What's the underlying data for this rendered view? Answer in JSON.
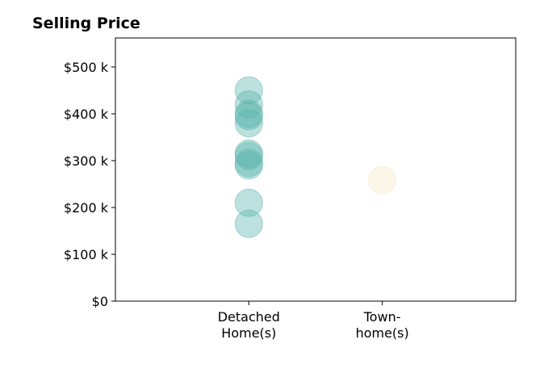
{
  "chart_data": {
    "type": "scatter",
    "title": "Selling Price",
    "xlabel": "",
    "ylabel": "",
    "categories": [
      {
        "lines": [
          "Detached",
          "Home(s)"
        ],
        "color": "#5ab4ac"
      },
      {
        "lines": [
          "Town-",
          "home(s)"
        ],
        "color": "#f6e8c3"
      }
    ],
    "series": [
      {
        "category_index": 0,
        "values": [
          450,
          420,
          400,
          395,
          380,
          315,
          310,
          295,
          290,
          210,
          165
        ]
      },
      {
        "category_index": 1,
        "values": [
          258
        ]
      }
    ],
    "y_ticks": [
      {
        "value": 0,
        "label": "$0"
      },
      {
        "value": 100,
        "label": "$100 k"
      },
      {
        "value": 200,
        "label": "$200 k"
      },
      {
        "value": 300,
        "label": "$300 k"
      },
      {
        "value": 400,
        "label": "$400 k"
      },
      {
        "value": 500,
        "label": "$500 k"
      }
    ],
    "ylim": [
      0,
      562
    ],
    "xlim": [
      0,
      3
    ],
    "grid": false,
    "legend": "none"
  }
}
